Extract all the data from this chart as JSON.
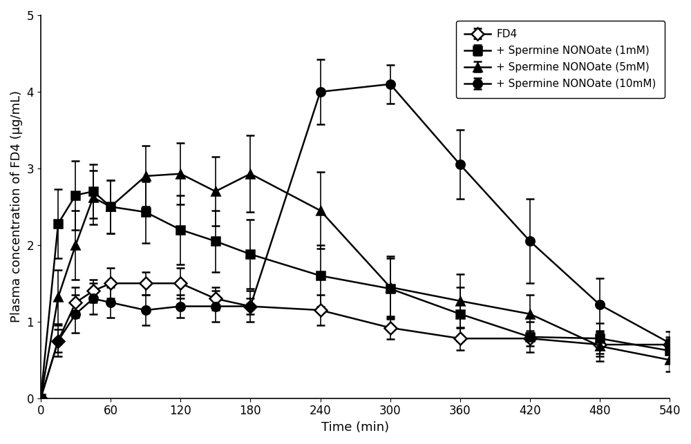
{
  "time": [
    0,
    15,
    30,
    45,
    60,
    90,
    120,
    150,
    180,
    240,
    300,
    360,
    420,
    480,
    540
  ],
  "FD4": {
    "y": [
      0,
      0.75,
      1.25,
      1.4,
      1.5,
      1.5,
      1.5,
      1.3,
      1.2,
      1.15,
      0.92,
      0.78,
      0.78,
      0.7,
      0.7
    ],
    "yerr": [
      0,
      0.15,
      0.2,
      0.15,
      0.2,
      0.15,
      0.2,
      0.15,
      0.1,
      0.2,
      0.15,
      0.15,
      0.1,
      0.15,
      0.1
    ],
    "label": "FD4",
    "marker": "D",
    "color": "#000000"
  },
  "S1mM": {
    "y": [
      0,
      2.28,
      2.65,
      2.7,
      2.5,
      2.43,
      2.2,
      2.05,
      1.88,
      1.6,
      1.43,
      1.1,
      0.8,
      0.78,
      0.62
    ],
    "yerr": [
      0,
      0.45,
      0.45,
      0.35,
      0.35,
      0.4,
      0.45,
      0.4,
      0.45,
      0.4,
      0.4,
      0.35,
      0.2,
      0.2,
      0.15
    ],
    "label": "+ Spermine NONOate (1mM)",
    "marker": "s",
    "color": "#000000"
  },
  "S5mM": {
    "y": [
      0,
      1.32,
      2.0,
      2.62,
      2.5,
      2.9,
      2.93,
      2.7,
      2.93,
      2.45,
      1.45,
      1.27,
      1.1,
      0.68,
      0.5
    ],
    "yerr": [
      0,
      0.35,
      0.45,
      0.35,
      0.35,
      0.4,
      0.4,
      0.45,
      0.5,
      0.5,
      0.4,
      0.35,
      0.25,
      0.2,
      0.15
    ],
    "label": "+ Spermine NONOate (5mM)",
    "marker": "^",
    "color": "#000000"
  },
  "S10mM": {
    "y": [
      0,
      0.75,
      1.1,
      1.3,
      1.25,
      1.15,
      1.2,
      1.2,
      1.2,
      4.0,
      4.1,
      3.05,
      2.05,
      1.22,
      0.72
    ],
    "yerr": [
      0,
      0.2,
      0.25,
      0.2,
      0.2,
      0.2,
      0.15,
      0.2,
      0.2,
      0.42,
      0.25,
      0.45,
      0.55,
      0.35,
      0.15
    ],
    "label": "+ Spermine NONOate (10mM)",
    "marker": "o",
    "color": "#000000"
  },
  "xlabel": "Time (min)",
  "ylabel": "Plasma concentration of FD4 (μg/mL)",
  "ylim": [
    0,
    5
  ],
  "xlim": [
    0,
    540
  ],
  "xticks": [
    0,
    60,
    120,
    180,
    240,
    300,
    360,
    420,
    480,
    540
  ],
  "yticks": [
    0,
    1,
    2,
    3,
    4,
    5
  ],
  "markersize": 9,
  "linewidth": 1.8,
  "capsize": 4,
  "elinewidth": 1.2
}
